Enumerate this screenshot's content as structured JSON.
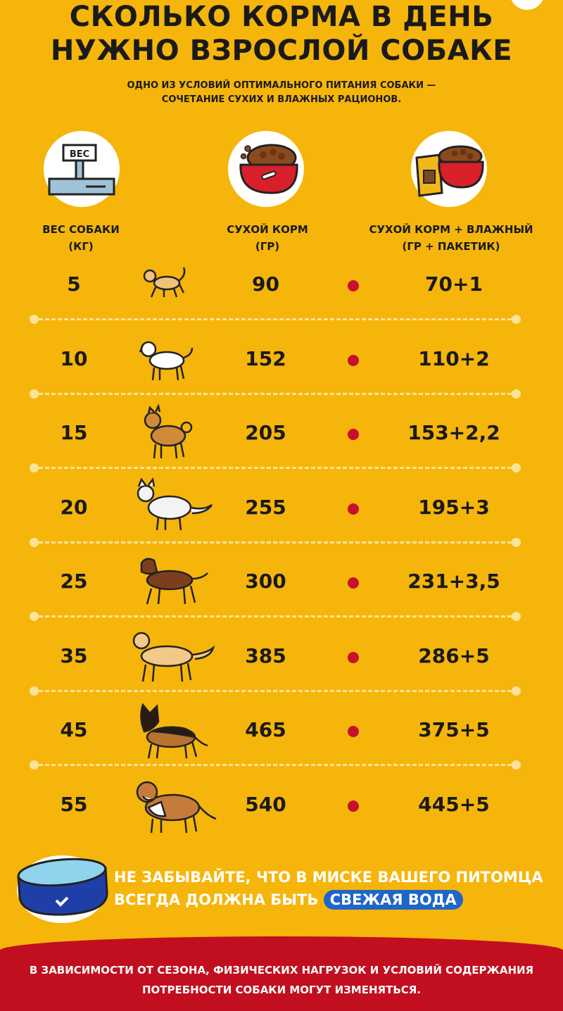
{
  "title": {
    "line1": "СКОЛЬКО КОРМА В ДЕНЬ",
    "line2": "НУЖНО ВЗРОСЛОЙ СОБАКЕ"
  },
  "subtitle": {
    "line1": "ОДНО ИЗ УСЛОВИЙ ОПТИМАЛЬНОГО ПИТАНИЯ СОБАКИ —",
    "line2": "СОЧЕТАНИЕ СУХИХ И ВЛАЖНЫХ РАЦИОНОВ."
  },
  "icons": {
    "scale_label": "ВЕС",
    "scale": "scale-icon",
    "dry": "dry-food-bowl-icon",
    "mix": "food-bag-bowl-icon"
  },
  "columns": {
    "weight": {
      "line1": "ВЕС СОБАКИ",
      "line2": "(КГ)"
    },
    "dry": {
      "line1": "СУХОЙ КОРМ",
      "line2": "(ГР)"
    },
    "mix": {
      "line1": "СУХОЙ КОРМ + ВЛАЖНЫЙ",
      "line2": "(ГР + ПАКЕТИК)"
    }
  },
  "rows": [
    {
      "weight": "5",
      "dry": "90",
      "mix": "70+1",
      "dog": "small-dog-icon"
    },
    {
      "weight": "10",
      "dry": "152",
      "mix": "110+2",
      "dog": "terrier-dog-icon"
    },
    {
      "weight": "15",
      "dry": "205",
      "mix": "153+2,2",
      "dog": "shiba-dog-icon"
    },
    {
      "weight": "20",
      "dry": "255",
      "mix": "195+3",
      "dog": "collie-dog-icon"
    },
    {
      "weight": "25",
      "dry": "300",
      "mix": "231+3,5",
      "dog": "labrador-dog-icon"
    },
    {
      "weight": "35",
      "dry": "385",
      "mix": "286+5",
      "dog": "retriever-dog-icon"
    },
    {
      "weight": "45",
      "dry": "465",
      "mix": "375+5",
      "dog": "shepherd-dog-icon"
    },
    {
      "weight": "55",
      "dry": "540",
      "mix": "445+5",
      "dog": "st-bernard-dog-icon"
    }
  ],
  "water": {
    "line1": "НЕ ЗАБЫВАЙТЕ, ЧТО В МИСКЕ ВАШЕГО ПИТОМЦА",
    "line2": "ВСЕГДА ДОЛЖНА БЫТЬ",
    "highlight": "СВЕЖАЯ ВОДА"
  },
  "footer": {
    "line1": "В ЗАВИСИМОСТИ ОТ СЕЗОНА, ФИЗИЧЕСКИХ НАГРУЗОК И УСЛОВИЙ СОДЕРЖАНИЯ",
    "line2": "ПОТРЕБНОСТИ СОБАКИ МОГУТ ИЗМЕНЯТЬСЯ."
  },
  "colors": {
    "background": "#F5B50B",
    "accent_red": "#C8102E",
    "highlight_blue": "#1E66C9",
    "divider": "#FCE39A"
  }
}
